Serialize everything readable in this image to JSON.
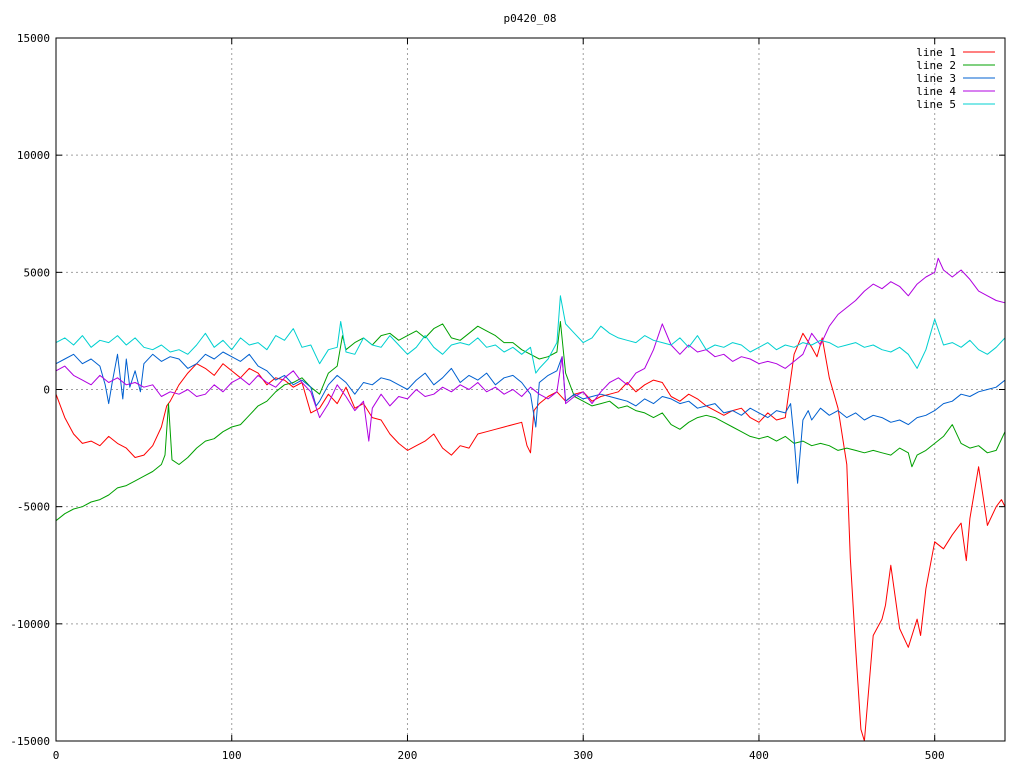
{
  "chart_data": {
    "type": "line",
    "title": "p0420_08",
    "xlabel": "",
    "ylabel": "",
    "xlim": [
      0,
      540
    ],
    "ylim": [
      -15000,
      15000
    ],
    "xticks": [
      0,
      100,
      200,
      300,
      400,
      500
    ],
    "yticks": [
      -15000,
      -10000,
      -5000,
      0,
      5000,
      10000,
      15000
    ],
    "grid": true,
    "legend_position": "top-right",
    "series": [
      {
        "name": "line 1",
        "color": "#ff0000",
        "x": [
          0,
          5,
          10,
          15,
          20,
          25,
          30,
          35,
          40,
          45,
          50,
          55,
          60,
          63,
          65,
          70,
          75,
          80,
          85,
          90,
          95,
          100,
          105,
          110,
          115,
          120,
          125,
          130,
          135,
          140,
          145,
          150,
          155,
          160,
          165,
          170,
          175,
          180,
          185,
          190,
          195,
          200,
          205,
          210,
          215,
          220,
          225,
          230,
          235,
          240,
          245,
          250,
          255,
          260,
          265,
          268,
          270,
          272,
          275,
          280,
          285,
          290,
          295,
          300,
          305,
          310,
          315,
          320,
          325,
          330,
          335,
          340,
          345,
          350,
          355,
          360,
          365,
          370,
          375,
          380,
          385,
          390,
          395,
          400,
          405,
          410,
          415,
          420,
          425,
          430,
          433,
          436,
          440,
          445,
          450,
          452,
          455,
          458,
          460,
          465,
          470,
          472,
          475,
          480,
          485,
          490,
          492,
          495,
          500,
          505,
          510,
          515,
          518,
          520,
          525,
          530,
          535,
          538,
          540
        ],
        "y": [
          -200,
          -1200,
          -1900,
          -2300,
          -2200,
          -2400,
          -2000,
          -2300,
          -2500,
          -2900,
          -2800,
          -2400,
          -1600,
          -700,
          -500,
          200,
          700,
          1100,
          900,
          600,
          1100,
          800,
          500,
          900,
          700,
          200,
          500,
          400,
          100,
          300,
          -1000,
          -800,
          -200,
          -600,
          100,
          -800,
          -600,
          -1200,
          -1300,
          -1900,
          -2300,
          -2600,
          -2400,
          -2200,
          -1900,
          -2500,
          -2800,
          -2400,
          -2500,
          -1900,
          -1800,
          -1700,
          -1600,
          -1500,
          -1400,
          -2400,
          -2700,
          -900,
          -600,
          -300,
          -100,
          -500,
          -200,
          -100,
          -500,
          -300,
          -200,
          -100,
          300,
          -100,
          200,
          400,
          300,
          -300,
          -500,
          -200,
          -400,
          -700,
          -900,
          -1100,
          -900,
          -800,
          -1200,
          -1400,
          -1000,
          -1300,
          -1200,
          1500,
          2400,
          1800,
          1400,
          2200,
          500,
          -800,
          -3200,
          -7200,
          -11000,
          -14500,
          -15000,
          -10500,
          -9800,
          -9200,
          -7500,
          -10200,
          -11000,
          -9800,
          -10500,
          -8500,
          -6500,
          -6800,
          -6200,
          -5700,
          -7300,
          -5500,
          -3300,
          -5800,
          -5000,
          -4700,
          -5000
        ]
      },
      {
        "name": "line 2",
        "color": "#00a000",
        "x": [
          0,
          5,
          10,
          15,
          20,
          25,
          30,
          35,
          40,
          45,
          50,
          55,
          60,
          62,
          64,
          66,
          70,
          75,
          80,
          85,
          90,
          95,
          100,
          105,
          110,
          115,
          120,
          125,
          130,
          135,
          140,
          145,
          150,
          155,
          160,
          163,
          165,
          170,
          175,
          180,
          185,
          190,
          195,
          200,
          205,
          210,
          215,
          220,
          225,
          230,
          235,
          240,
          245,
          250,
          255,
          260,
          265,
          270,
          275,
          280,
          285,
          287,
          290,
          295,
          300,
          305,
          310,
          315,
          320,
          325,
          330,
          335,
          340,
          345,
          350,
          355,
          360,
          365,
          370,
          375,
          380,
          385,
          390,
          395,
          400,
          405,
          410,
          415,
          420,
          425,
          430,
          435,
          440,
          445,
          450,
          455,
          460,
          465,
          470,
          475,
          480,
          485,
          487,
          490,
          495,
          500,
          505,
          510,
          515,
          520,
          525,
          530,
          535,
          540
        ],
        "y": [
          -5600,
          -5300,
          -5100,
          -5000,
          -4800,
          -4700,
          -4500,
          -4200,
          -4100,
          -3900,
          -3700,
          -3500,
          -3200,
          -2800,
          -600,
          -3000,
          -3200,
          -2900,
          -2500,
          -2200,
          -2100,
          -1800,
          -1600,
          -1500,
          -1100,
          -700,
          -500,
          -100,
          200,
          300,
          500,
          100,
          -200,
          700,
          1000,
          2300,
          1700,
          2000,
          2200,
          1900,
          2300,
          2400,
          2100,
          2300,
          2500,
          2200,
          2600,
          2800,
          2200,
          2100,
          2400,
          2700,
          2500,
          2300,
          2000,
          2000,
          1700,
          1500,
          1300,
          1400,
          1600,
          2900,
          700,
          -300,
          -500,
          -700,
          -600,
          -500,
          -800,
          -700,
          -900,
          -1000,
          -1200,
          -1000,
          -1500,
          -1700,
          -1400,
          -1200,
          -1100,
          -1200,
          -1400,
          -1600,
          -1800,
          -2000,
          -2100,
          -2000,
          -2200,
          -2000,
          -2300,
          -2200,
          -2400,
          -2300,
          -2400,
          -2600,
          -2500,
          -2600,
          -2700,
          -2600,
          -2700,
          -2800,
          -2500,
          -2700,
          -3300,
          -2800,
          -2600,
          -2300,
          -2000,
          -1500,
          -2300,
          -2500,
          -2400,
          -2700,
          -2600,
          -1800
        ]
      },
      {
        "name": "line 3",
        "color": "#0060d0",
        "x": [
          0,
          5,
          10,
          15,
          20,
          25,
          28,
          30,
          32,
          35,
          38,
          40,
          42,
          45,
          48,
          50,
          55,
          60,
          65,
          70,
          75,
          80,
          85,
          90,
          95,
          100,
          105,
          110,
          115,
          120,
          125,
          130,
          135,
          140,
          145,
          148,
          150,
          155,
          160,
          165,
          170,
          175,
          180,
          185,
          190,
          195,
          200,
          205,
          210,
          215,
          220,
          225,
          230,
          235,
          240,
          245,
          250,
          255,
          260,
          265,
          270,
          273,
          275,
          280,
          285,
          288,
          290,
          295,
          300,
          305,
          310,
          315,
          320,
          325,
          330,
          335,
          340,
          345,
          350,
          355,
          360,
          365,
          370,
          375,
          380,
          385,
          390,
          395,
          400,
          405,
          410,
          415,
          418,
          420,
          422,
          425,
          428,
          430,
          435,
          440,
          445,
          450,
          455,
          460,
          465,
          470,
          475,
          480,
          485,
          490,
          495,
          500,
          505,
          510,
          515,
          520,
          525,
          530,
          535,
          540
        ],
        "y": [
          1100,
          1300,
          1500,
          1100,
          1300,
          1000,
          200,
          -600,
          300,
          1500,
          -400,
          1300,
          100,
          800,
          -100,
          1100,
          1500,
          1200,
          1400,
          1300,
          900,
          1100,
          1500,
          1300,
          1600,
          1400,
          1200,
          1500,
          1000,
          800,
          400,
          600,
          200,
          400,
          100,
          -700,
          -500,
          200,
          600,
          300,
          -200,
          300,
          200,
          500,
          400,
          200,
          0,
          400,
          700,
          200,
          500,
          900,
          300,
          600,
          400,
          700,
          200,
          500,
          600,
          300,
          -200,
          -1600,
          300,
          600,
          800,
          1400,
          -500,
          -200,
          -400,
          -300,
          -200,
          -300,
          -400,
          -500,
          -700,
          -400,
          -600,
          -300,
          -400,
          -600,
          -500,
          -800,
          -700,
          -600,
          -1000,
          -900,
          -1100,
          -800,
          -1000,
          -1200,
          -900,
          -1000,
          -600,
          -2100,
          -4000,
          -1300,
          -900,
          -1300,
          -800,
          -1100,
          -900,
          -1200,
          -1000,
          -1300,
          -1100,
          -1200,
          -1400,
          -1300,
          -1500,
          -1200,
          -1100,
          -900,
          -600,
          -500,
          -200,
          -300,
          -100,
          0,
          100,
          400
        ]
      },
      {
        "name": "line 4",
        "color": "#b000e0",
        "x": [
          0,
          5,
          10,
          15,
          20,
          25,
          30,
          35,
          40,
          45,
          50,
          55,
          60,
          65,
          70,
          75,
          80,
          85,
          90,
          95,
          100,
          105,
          110,
          115,
          120,
          125,
          130,
          135,
          140,
          145,
          150,
          155,
          160,
          165,
          170,
          175,
          178,
          180,
          185,
          190,
          195,
          200,
          205,
          210,
          215,
          220,
          225,
          230,
          235,
          240,
          245,
          250,
          255,
          260,
          265,
          270,
          275,
          280,
          285,
          288,
          290,
          295,
          300,
          305,
          310,
          315,
          320,
          325,
          330,
          335,
          340,
          345,
          350,
          355,
          360,
          365,
          370,
          375,
          380,
          385,
          390,
          395,
          400,
          405,
          410,
          415,
          420,
          425,
          430,
          435,
          440,
          445,
          450,
          455,
          460,
          465,
          470,
          475,
          480,
          485,
          490,
          495,
          500,
          502,
          505,
          510,
          515,
          520,
          525,
          530,
          535,
          540
        ],
        "y": [
          800,
          1000,
          600,
          400,
          200,
          600,
          300,
          500,
          200,
          300,
          100,
          200,
          -300,
          -100,
          -200,
          0,
          -300,
          -200,
          200,
          -100,
          300,
          500,
          200,
          600,
          300,
          100,
          500,
          800,
          300,
          -100,
          -1200,
          -600,
          200,
          -300,
          -900,
          -500,
          -2200,
          -800,
          -200,
          -700,
          -300,
          -400,
          0,
          -300,
          -200,
          100,
          -100,
          200,
          0,
          300,
          -100,
          100,
          -200,
          0,
          -300,
          100,
          -200,
          -400,
          -100,
          1400,
          -600,
          -300,
          -100,
          -600,
          -100,
          300,
          500,
          200,
          700,
          900,
          1700,
          2800,
          1900,
          1500,
          1900,
          1600,
          1700,
          1400,
          1500,
          1200,
          1400,
          1300,
          1100,
          1200,
          1100,
          900,
          1200,
          1500,
          2400,
          1900,
          2700,
          3200,
          3500,
          3800,
          4200,
          4500,
          4300,
          4600,
          4400,
          4000,
          4500,
          4800,
          5000,
          5600,
          5100,
          4800,
          5100,
          4700,
          4200,
          4000,
          3800,
          3700
        ]
      },
      {
        "name": "line 5",
        "color": "#00d0d0",
        "x": [
          0,
          5,
          10,
          15,
          20,
          25,
          30,
          35,
          40,
          45,
          50,
          55,
          60,
          65,
          70,
          75,
          80,
          85,
          90,
          95,
          100,
          105,
          110,
          115,
          120,
          125,
          130,
          135,
          140,
          145,
          150,
          155,
          160,
          162,
          165,
          170,
          175,
          180,
          185,
          190,
          195,
          200,
          205,
          210,
          215,
          220,
          225,
          230,
          235,
          240,
          245,
          250,
          255,
          260,
          265,
          270,
          273,
          275,
          280,
          285,
          287,
          290,
          295,
          300,
          305,
          310,
          315,
          320,
          325,
          330,
          335,
          340,
          345,
          350,
          355,
          360,
          365,
          370,
          375,
          380,
          385,
          390,
          395,
          400,
          405,
          410,
          415,
          420,
          425,
          430,
          435,
          440,
          445,
          450,
          455,
          460,
          465,
          470,
          475,
          480,
          485,
          490,
          495,
          500,
          505,
          510,
          515,
          520,
          525,
          530,
          535,
          540
        ],
        "y": [
          2000,
          2200,
          1900,
          2300,
          1800,
          2100,
          2000,
          2300,
          1900,
          2200,
          1800,
          1700,
          1900,
          1600,
          1700,
          1500,
          1900,
          2400,
          1800,
          2100,
          1700,
          2200,
          1900,
          2000,
          1700,
          2300,
          2100,
          2600,
          1800,
          1900,
          1100,
          1700,
          1800,
          2900,
          1600,
          1500,
          2200,
          1900,
          1800,
          2300,
          1900,
          1500,
          1800,
          2300,
          1800,
          1500,
          1900,
          2000,
          1900,
          2200,
          1800,
          1900,
          1600,
          1800,
          1500,
          1800,
          700,
          900,
          1300,
          2000,
          4000,
          2800,
          2400,
          2000,
          2200,
          2700,
          2400,
          2200,
          2100,
          2000,
          2300,
          2100,
          2000,
          1900,
          2200,
          1800,
          2300,
          1700,
          1900,
          1800,
          2000,
          1900,
          1600,
          1800,
          2000,
          1700,
          1900,
          1800,
          2000,
          1900,
          2100,
          2000,
          1800,
          1900,
          2000,
          1800,
          1900,
          1700,
          1600,
          1800,
          1500,
          900,
          1700,
          3000,
          1900,
          2000,
          1800,
          2100,
          1700,
          1500,
          1800,
          2200
        ]
      }
    ]
  }
}
